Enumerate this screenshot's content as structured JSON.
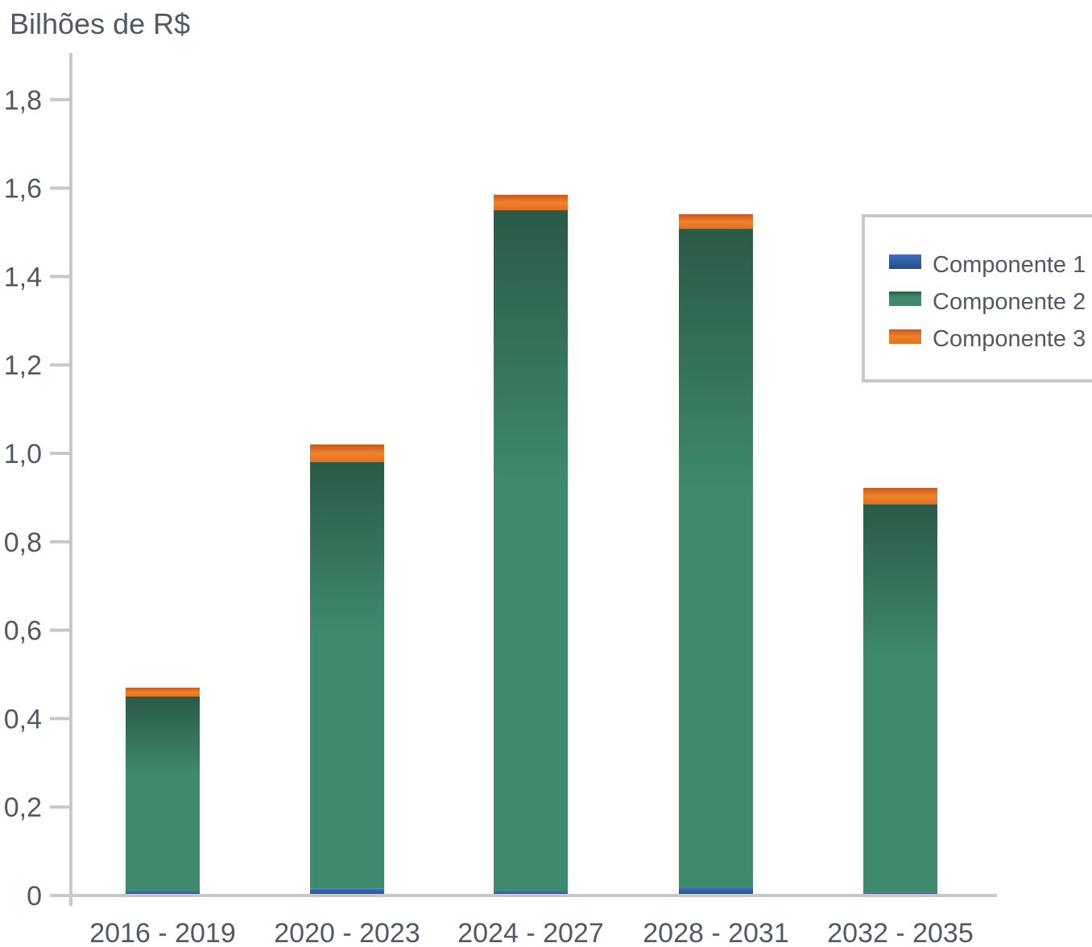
{
  "chart_data": {
    "type": "bar",
    "stacked": true,
    "ylabel": "Bilhões de R$",
    "xlabel": "",
    "ylim": [
      0,
      1.9
    ],
    "yticks": [
      0,
      0.2,
      0.4,
      0.6,
      0.8,
      1.0,
      1.2,
      1.4,
      1.6,
      1.8
    ],
    "ytick_labels": [
      "0",
      "0,2",
      "0,4",
      "0,6",
      "0,8",
      "1,0",
      "1,2",
      "1,4",
      "1,6",
      "1,8"
    ],
    "categories": [
      "2016 - 2019",
      "2020 - 2023",
      "2024 - 2027",
      "2028 - 2031",
      "2032 - 2035"
    ],
    "series": [
      {
        "name": "Componente 1",
        "color": "#2e5aa0",
        "values": [
          0.01,
          0.015,
          0.01,
          0.018,
          0.007
        ]
      },
      {
        "name": "Componente 2",
        "color": "#3f8a6c",
        "values": [
          0.44,
          0.965,
          1.54,
          1.49,
          0.878
        ]
      },
      {
        "name": "Componente 3",
        "color": "#ea7a26",
        "values": [
          0.02,
          0.04,
          0.035,
          0.033,
          0.037
        ]
      }
    ],
    "legend_position": "right",
    "grid": false
  }
}
